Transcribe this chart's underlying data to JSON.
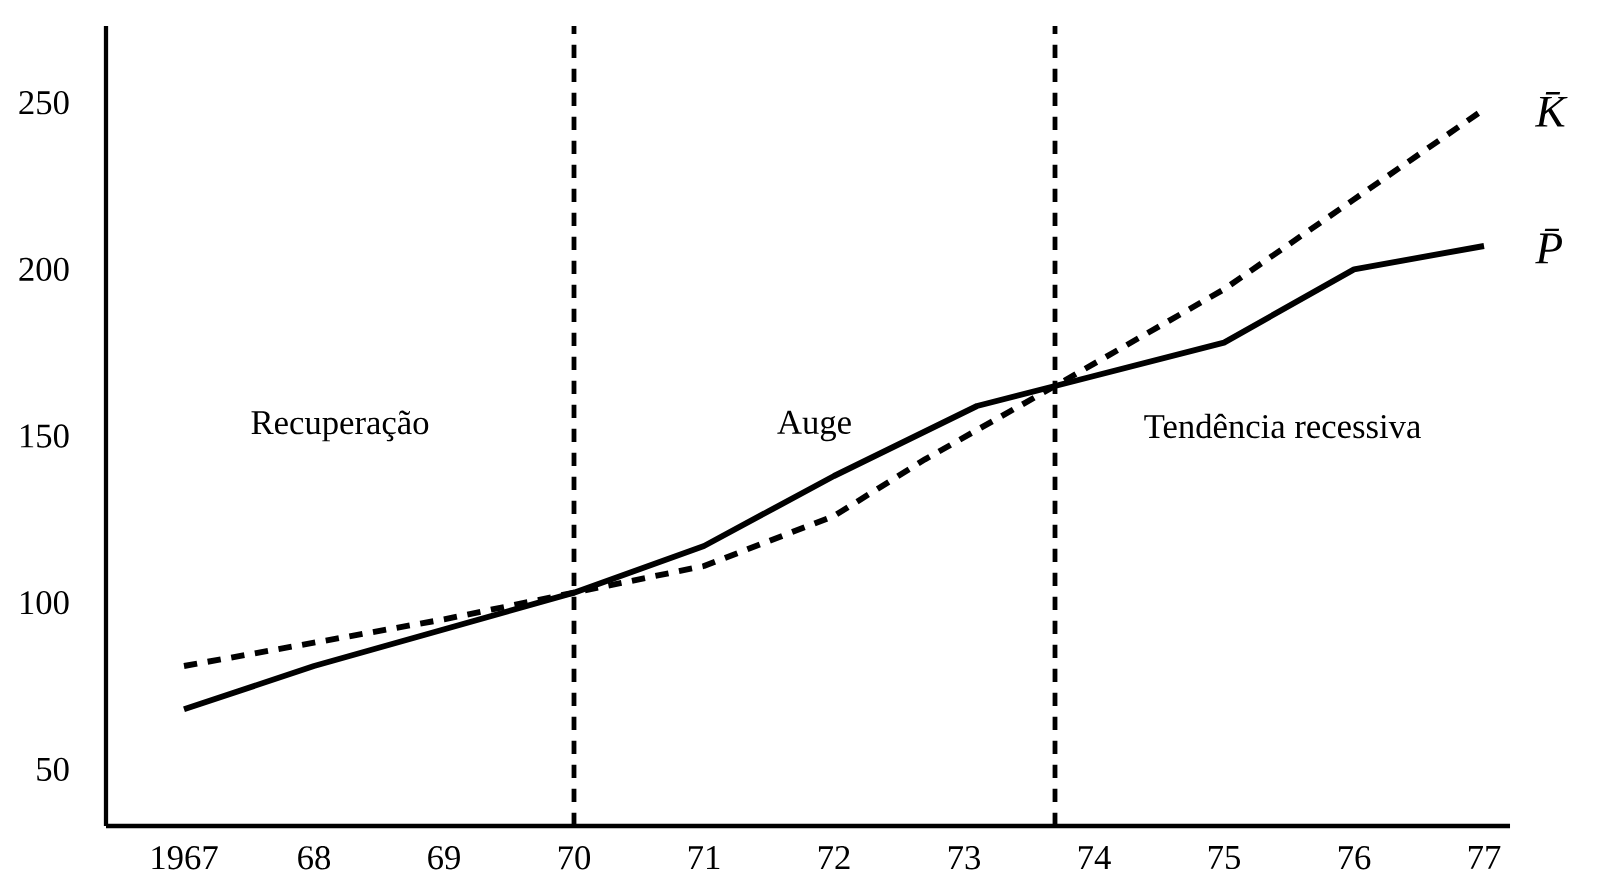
{
  "chart_data": {
    "type": "line",
    "xlim": [
      1966.4,
      1977.2
    ],
    "ylim": [
      33,
      273
    ],
    "xticks": [
      {
        "value": 1967,
        "label": "1967"
      },
      {
        "value": 1968,
        "label": "68"
      },
      {
        "value": 1969,
        "label": "69"
      },
      {
        "value": 1970,
        "label": "70"
      },
      {
        "value": 1971,
        "label": "71"
      },
      {
        "value": 1972,
        "label": "72"
      },
      {
        "value": 1973,
        "label": "73"
      },
      {
        "value": 1974,
        "label": "74"
      },
      {
        "value": 1975,
        "label": "75"
      },
      {
        "value": 1976,
        "label": "76"
      },
      {
        "value": 1977,
        "label": "77"
      }
    ],
    "yticks": [
      50,
      100,
      150,
      200,
      250
    ],
    "grid": false,
    "marker": "none",
    "series": [
      {
        "name": "K̄",
        "color": "#000000",
        "line_style": "dashed",
        "x": [
          1967,
          1968,
          1969,
          1970,
          1971,
          1972,
          1972.7,
          1973.7,
          1975,
          1976,
          1977
        ],
        "values": [
          81,
          88,
          95,
          103,
          111,
          126,
          143,
          165,
          194,
          221,
          248
        ]
      },
      {
        "name": "P̄",
        "color": "#000000",
        "line_style": "solid",
        "x": [
          1967,
          1968,
          1969,
          1970,
          1971,
          1972,
          1973.1,
          1973.7,
          1975,
          1976,
          1977
        ],
        "values": [
          68,
          81,
          92,
          103,
          117,
          138,
          159,
          165,
          178,
          200,
          207
        ]
      }
    ],
    "ref_lines": [
      {
        "axis": "x",
        "value": 1970,
        "line_style": "dashed",
        "color": "#000000"
      },
      {
        "axis": "x",
        "value": 1973.7,
        "line_style": "dashed",
        "color": "#000000"
      }
    ],
    "annotations": [
      "Recuperação",
      "Auge",
      "Tendência recessiva"
    ]
  }
}
